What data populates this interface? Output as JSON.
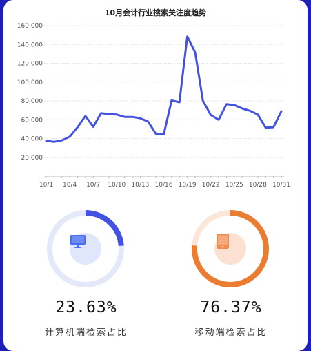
{
  "chart_data": {
    "type": "line",
    "title": "10月会计行业搜索关注度趋势",
    "x": [
      "10/1",
      "10/2",
      "10/3",
      "10/4",
      "10/5",
      "10/6",
      "10/7",
      "10/8",
      "10/9",
      "10/10",
      "10/11",
      "10/12",
      "10/13",
      "10/14",
      "10/15",
      "10/16",
      "10/17",
      "10/18",
      "10/19",
      "10/20",
      "10/21",
      "10/22",
      "10/23",
      "10/24",
      "10/25",
      "10/26",
      "10/27",
      "10/28",
      "10/29",
      "10/30",
      "10/31"
    ],
    "x_tick_labels": [
      "10/1",
      "10/4",
      "10/7",
      "10/10",
      "10/13",
      "10/16",
      "10/19",
      "10/22",
      "10/25",
      "10/28",
      "10/31"
    ],
    "y_tick_labels": [
      "20,000",
      "40,000",
      "60,000",
      "80,000",
      "100,000",
      "120,000",
      "140,000",
      "160,000"
    ],
    "series": [
      {
        "values": [
          37500,
          36500,
          38000,
          42000,
          52000,
          64000,
          52500,
          67000,
          66000,
          65500,
          63000,
          63000,
          61500,
          58000,
          45000,
          44500,
          80500,
          78500,
          148500,
          131500,
          80000,
          65000,
          60000,
          76500,
          75500,
          72000,
          69500,
          65500,
          51500,
          52000,
          69000
        ]
      }
    ],
    "ylim": [
      0,
      160000
    ],
    "grid": true,
    "color": "#4452e0"
  },
  "desktop": {
    "percent": "23.63%",
    "label": "计算机端检索占比",
    "value": 0.2363,
    "color": "#4452e0",
    "track_color": "#e4e8f8",
    "icon_bg": "#e0e6fb",
    "icon": "desktop-monitor-icon"
  },
  "mobile": {
    "percent": "76.37%",
    "label": "移动端检索占比",
    "value": 0.7637,
    "color": "#eb7d32",
    "track_color": "#fbe7da",
    "icon_bg": "#fce1d3",
    "icon": "tablet-icon"
  }
}
